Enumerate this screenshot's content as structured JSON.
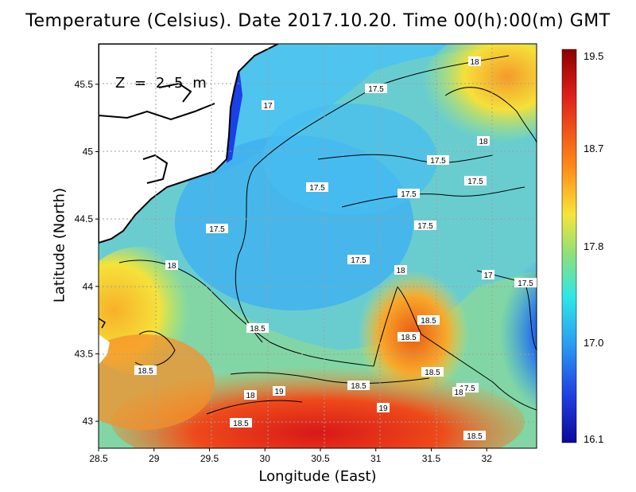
{
  "title": "Temperature (Celsius). Date 2017.10.20. Time 00(h):00(m) GMT",
  "depth_label": "Z = 2.5 m",
  "x_axis": {
    "label": "Longitude (East)",
    "ticks": [
      "28.5",
      "29",
      "29.5",
      "30",
      "30.5",
      "31",
      "31.5",
      "32"
    ],
    "range": [
      28.5,
      32.45
    ]
  },
  "y_axis": {
    "label": "Latitude (North)",
    "ticks": [
      "43",
      "43.5",
      "44",
      "44.5",
      "45",
      "45.5"
    ],
    "range": [
      42.8,
      45.8
    ]
  },
  "colorbar": {
    "ticks": [
      "19.5",
      "18.7",
      "17.8",
      "17.0",
      "16.1"
    ],
    "colors": [
      "#8b0000",
      "#e0201a",
      "#ff8c1a",
      "#f5e53a",
      "#8fe07a",
      "#2fe6e6",
      "#2a9cf2",
      "#1f3fe0",
      "#0a0a9a"
    ]
  },
  "colors": {
    "land": "#ffffff",
    "coast": "#000000",
    "cold_sea": "#35b8f0",
    "warm_sea": "#f59a2a"
  },
  "contour_labels": [
    "18",
    "17.5",
    "17",
    "18",
    "17.5",
    "17.5",
    "17.5",
    "17.5",
    "17.5",
    "17.5",
    "18",
    "18",
    "17.5",
    "17",
    "17.5",
    "18.5",
    "18.5",
    "18.5",
    "18.5",
    "18.5",
    "18",
    "19",
    "18.5",
    "19",
    "17.5",
    "18",
    "18.5",
    "18.5"
  ]
}
